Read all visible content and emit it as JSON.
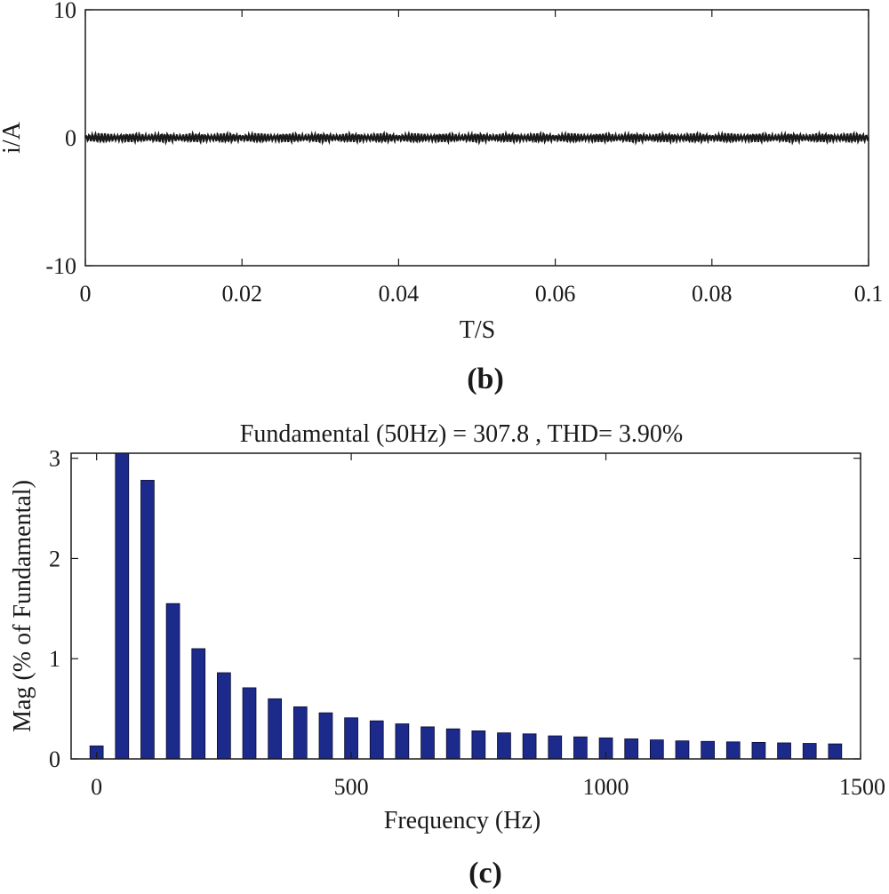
{
  "chart_data": [
    {
      "type": "line",
      "caption": "(b)",
      "xlabel": "T/S",
      "ylabel": "i/A",
      "xlim": [
        0,
        0.1
      ],
      "ylim": [
        -10,
        10
      ],
      "x_ticks": [
        "0",
        "0.02",
        "0.04",
        "0.06",
        "0.08",
        "0.1"
      ],
      "y_ticks": [
        "10",
        "0",
        "-10"
      ],
      "series": [
        {
          "amplitude": 0.35,
          "description_values": {
            "mean": 0,
            "min": -0.5,
            "max": 0.5
          }
        }
      ],
      "colors": {
        "line": "#1a1a1a"
      }
    },
    {
      "type": "bar",
      "caption": "(c)",
      "title": "Fundamental (50Hz) = 307.8 , THD= 3.90%",
      "xlabel": "Frequency (Hz)",
      "ylabel": "Mag (% of Fundamental)",
      "xlim": [
        -50,
        1500
      ],
      "ylim": [
        0,
        3.05
      ],
      "x_ticks": [
        "0",
        "500",
        "1000",
        "1500"
      ],
      "y_ticks": [
        "0",
        "1",
        "2",
        "3"
      ],
      "x": [
        0,
        50,
        100,
        150,
        200,
        250,
        300,
        350,
        400,
        450,
        500,
        550,
        600,
        650,
        700,
        750,
        800,
        850,
        900,
        950,
        1000,
        1050,
        1100,
        1150,
        1200,
        1250,
        1300,
        1350,
        1400,
        1450
      ],
      "values": [
        0.13,
        3.05,
        2.78,
        1.55,
        1.1,
        0.86,
        0.71,
        0.6,
        0.52,
        0.46,
        0.41,
        0.38,
        0.35,
        0.32,
        0.3,
        0.28,
        0.26,
        0.25,
        0.23,
        0.22,
        0.21,
        0.2,
        0.19,
        0.18,
        0.175,
        0.17,
        0.165,
        0.16,
        0.155,
        0.15
      ],
      "colors": {
        "bar": "#1c2a8c",
        "edge": "#0a0a30"
      }
    }
  ]
}
